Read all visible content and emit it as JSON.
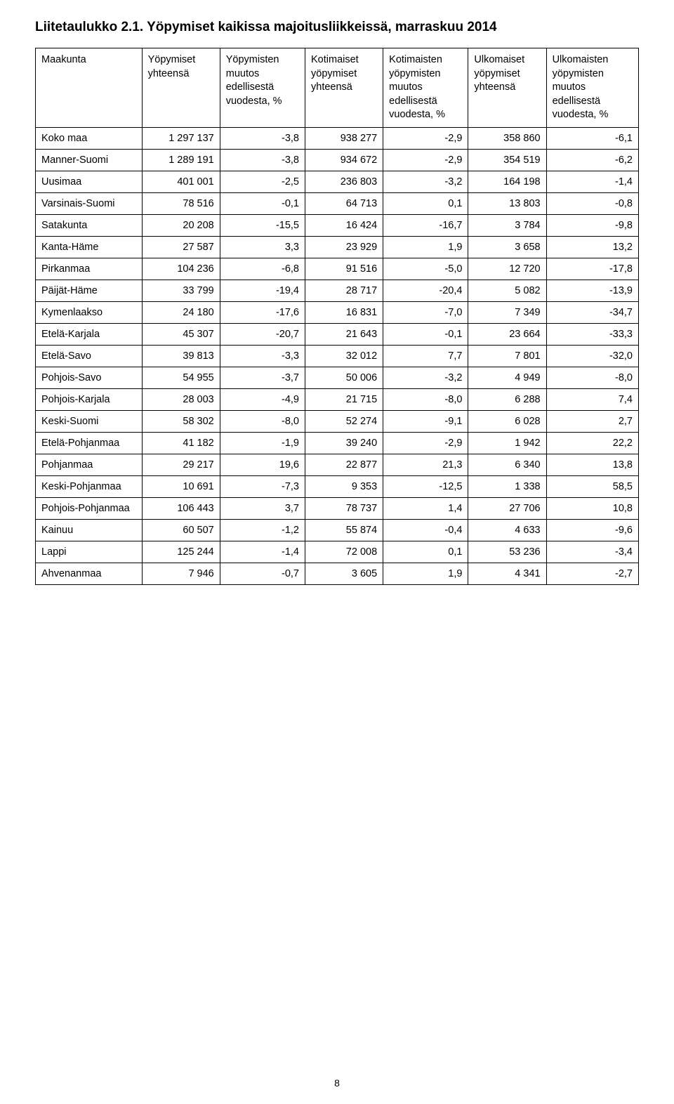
{
  "title": "Liitetaulukko 2.1. Yöpymiset kaikissa majoitusliikkeissä, marraskuu 2014",
  "page_number": "8",
  "table": {
    "columns": [
      "Maakunta",
      "Yöpymiset yhteensä",
      "Yöpymisten muutos edellisestä vuodesta, %",
      "Kotimaiset yöpymiset yhteensä",
      "Kotimaisten yöpymisten muutos edellisestä vuodesta, %",
      "Ulkomaiset yöpymiset yhteensä",
      "Ulkomaisten yöpymisten muutos edellisestä vuodesta, %"
    ],
    "rows": [
      [
        "Koko maa",
        "1 297 137",
        "-3,8",
        "938 277",
        "-2,9",
        "358 860",
        "-6,1"
      ],
      [
        "Manner-Suomi",
        "1 289 191",
        "-3,8",
        "934 672",
        "-2,9",
        "354 519",
        "-6,2"
      ],
      [
        "Uusimaa",
        "401 001",
        "-2,5",
        "236 803",
        "-3,2",
        "164 198",
        "-1,4"
      ],
      [
        "Varsinais-Suomi",
        "78 516",
        "-0,1",
        "64 713",
        "0,1",
        "13 803",
        "-0,8"
      ],
      [
        "Satakunta",
        "20 208",
        "-15,5",
        "16 424",
        "-16,7",
        "3 784",
        "-9,8"
      ],
      [
        "Kanta-Häme",
        "27 587",
        "3,3",
        "23 929",
        "1,9",
        "3 658",
        "13,2"
      ],
      [
        "Pirkanmaa",
        "104 236",
        "-6,8",
        "91 516",
        "-5,0",
        "12 720",
        "-17,8"
      ],
      [
        "Päijät-Häme",
        "33 799",
        "-19,4",
        "28 717",
        "-20,4",
        "5 082",
        "-13,9"
      ],
      [
        "Kymenlaakso",
        "24 180",
        "-17,6",
        "16 831",
        "-7,0",
        "7 349",
        "-34,7"
      ],
      [
        "Etelä-Karjala",
        "45 307",
        "-20,7",
        "21 643",
        "-0,1",
        "23 664",
        "-33,3"
      ],
      [
        "Etelä-Savo",
        "39 813",
        "-3,3",
        "32 012",
        "7,7",
        "7 801",
        "-32,0"
      ],
      [
        "Pohjois-Savo",
        "54 955",
        "-3,7",
        "50 006",
        "-3,2",
        "4 949",
        "-8,0"
      ],
      [
        "Pohjois-Karjala",
        "28 003",
        "-4,9",
        "21 715",
        "-8,0",
        "6 288",
        "7,4"
      ],
      [
        "Keski-Suomi",
        "58 302",
        "-8,0",
        "52 274",
        "-9,1",
        "6 028",
        "2,7"
      ],
      [
        "Etelä-Pohjanmaa",
        "41 182",
        "-1,9",
        "39 240",
        "-2,9",
        "1 942",
        "22,2"
      ],
      [
        "Pohjanmaa",
        "29 217",
        "19,6",
        "22 877",
        "21,3",
        "6 340",
        "13,8"
      ],
      [
        "Keski-Pohjanmaa",
        "10 691",
        "-7,3",
        "9 353",
        "-12,5",
        "1 338",
        "58,5"
      ],
      [
        "Pohjois-Pohjanmaa",
        "106 443",
        "3,7",
        "78 737",
        "1,4",
        "27 706",
        "10,8"
      ],
      [
        "Kainuu",
        "60 507",
        "-1,2",
        "55 874",
        "-0,4",
        "4 633",
        "-9,6"
      ],
      [
        "Lappi",
        "125 244",
        "-1,4",
        "72 008",
        "0,1",
        "53 236",
        "-3,4"
      ],
      [
        "Ahvenanmaa",
        "7 946",
        "-0,7",
        "3 605",
        "1,9",
        "4 341",
        "-2,7"
      ]
    ]
  }
}
